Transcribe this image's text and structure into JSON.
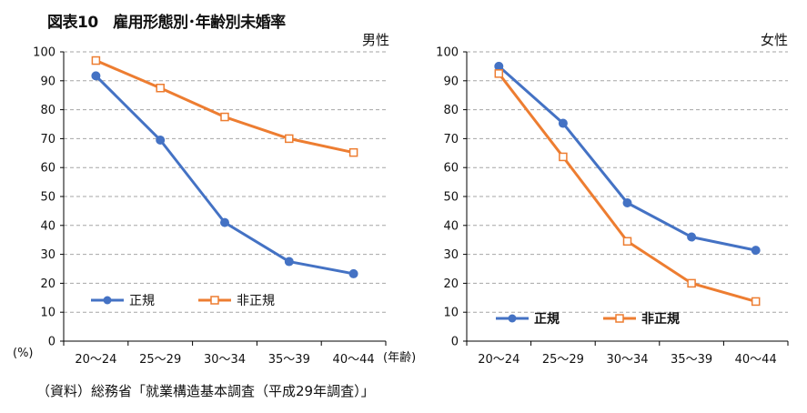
{
  "figure_title": "図表10　雇用形態別･年齢別未婚率",
  "source": "（資料）総務省「就業構造基本調査（平成29年調査）」",
  "colors": {
    "regular": "#4472C4",
    "nonregular": "#ED7D31",
    "grid": "#A6A6A6",
    "axis": "#000000"
  },
  "chart_data": [
    {
      "type": "line",
      "panel_label": "男性",
      "ylabel": "(%)",
      "xunit": "(年齢)",
      "categories": [
        "20～24",
        "25～29",
        "30～34",
        "35～39",
        "40～44"
      ],
      "ylim": [
        0,
        100
      ],
      "yticks": [
        "0",
        "10",
        "20",
        "30",
        "40",
        "50",
        "60",
        "70",
        "80",
        "90",
        "100"
      ],
      "grid": true,
      "legend": "bottom-left",
      "series": [
        {
          "name": "正規",
          "marker": "circle",
          "values": [
            91.7,
            69.5,
            41.0,
            27.5,
            23.3
          ]
        },
        {
          "name": "非正規",
          "marker": "open-square",
          "values": [
            97.0,
            87.5,
            77.5,
            70.0,
            65.2
          ]
        }
      ]
    },
    {
      "type": "line",
      "panel_label": "女性",
      "ylabel": "",
      "xunit": "",
      "categories": [
        "20～24",
        "25～29",
        "30～34",
        "35～39",
        "40～44"
      ],
      "ylim": [
        0,
        100
      ],
      "yticks": [
        "0",
        "10",
        "20",
        "30",
        "40",
        "50",
        "60",
        "70",
        "80",
        "90",
        "100"
      ],
      "grid": true,
      "legend": "bottom-left",
      "series": [
        {
          "name": "正規",
          "marker": "circle",
          "values": [
            95.0,
            75.3,
            47.8,
            36.0,
            31.4
          ]
        },
        {
          "name": "非正規",
          "marker": "open-square",
          "values": [
            92.5,
            63.7,
            34.5,
            20.0,
            13.7
          ]
        }
      ]
    }
  ]
}
